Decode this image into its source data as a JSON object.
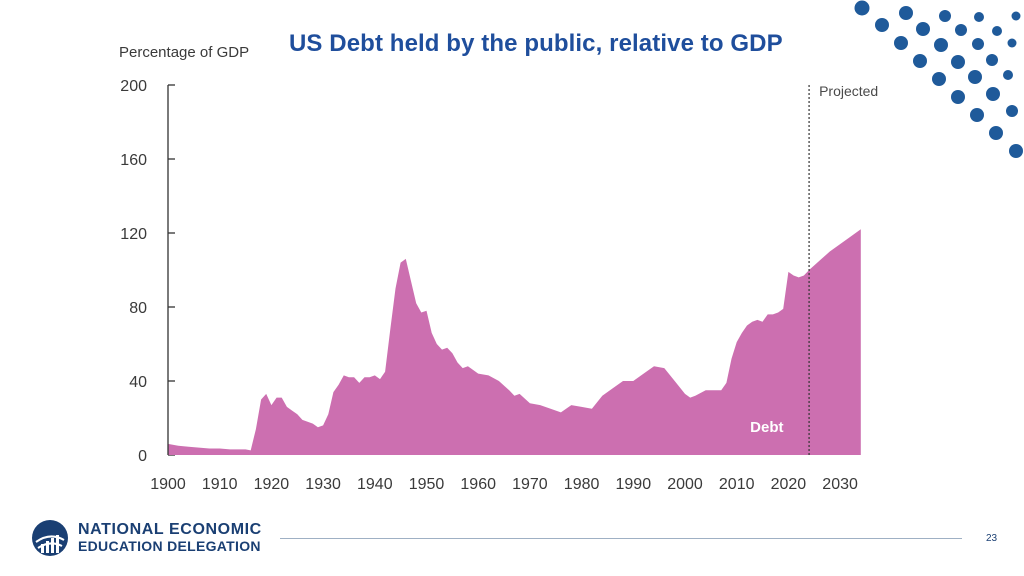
{
  "slide": {
    "title": "US Debt held by the public, relative to GDP",
    "page_number": "23",
    "logo": {
      "line1": "NATIONAL ECONOMIC",
      "line2": "EDUCATION DELEGATION"
    }
  },
  "colors": {
    "title": "#1f4e9c",
    "area_fill": "#cc6fb0",
    "dots": "#1f5a9a",
    "logo": "#1a3f73"
  },
  "chart_data": {
    "type": "area",
    "title": "US Debt held by the public, relative to GDP",
    "ylabel": "Percentage of GDP",
    "xlabel": "",
    "xlim": [
      1900,
      2034
    ],
    "ylim": [
      0,
      200
    ],
    "x_ticks": [
      1900,
      1910,
      1920,
      1930,
      1940,
      1950,
      1960,
      1970,
      1980,
      1990,
      2000,
      2010,
      2020,
      2030
    ],
    "y_ticks": [
      0,
      40,
      80,
      120,
      160,
      200
    ],
    "projection_start": 2024,
    "projection_label": "Projected",
    "annotations": [
      "Debt"
    ],
    "series": [
      {
        "name": "Debt",
        "x": [
          1900,
          1902,
          1904,
          1906,
          1908,
          1910,
          1912,
          1914,
          1915,
          1916,
          1917,
          1918,
          1919,
          1920,
          1921,
          1922,
          1923,
          1924,
          1925,
          1926,
          1927,
          1928,
          1929,
          1930,
          1931,
          1932,
          1933,
          1934,
          1935,
          1936,
          1937,
          1938,
          1939,
          1940,
          1941,
          1942,
          1943,
          1944,
          1945,
          1946,
          1947,
          1948,
          1949,
          1950,
          1951,
          1952,
          1953,
          1954,
          1955,
          1956,
          1957,
          1958,
          1959,
          1960,
          1962,
          1964,
          1966,
          1967,
          1968,
          1970,
          1972,
          1974,
          1976,
          1978,
          1980,
          1982,
          1984,
          1986,
          1988,
          1990,
          1992,
          1994,
          1996,
          1998,
          2000,
          2001,
          2002,
          2004,
          2006,
          2007,
          2008,
          2009,
          2010,
          2011,
          2012,
          2013,
          2014,
          2015,
          2016,
          2017,
          2018,
          2019,
          2020,
          2021,
          2022,
          2023,
          2024,
          2026,
          2028,
          2030,
          2032,
          2034
        ],
        "values": [
          6,
          5,
          4.5,
          4,
          3.5,
          3.5,
          3,
          3,
          3,
          2.5,
          14,
          30,
          33,
          27,
          31,
          31,
          26,
          24,
          22,
          19,
          18,
          17,
          15,
          16,
          22,
          34,
          38,
          43,
          42,
          42,
          39,
          42,
          42,
          43,
          41,
          45,
          68,
          90,
          104,
          106,
          94,
          82,
          77,
          78,
          66,
          60,
          57,
          58,
          55,
          50,
          47,
          48,
          46,
          44,
          43,
          40,
          35,
          32,
          33,
          28,
          27,
          25,
          23,
          27,
          26,
          25,
          32,
          36,
          40,
          40,
          44,
          48,
          47,
          40,
          33,
          31,
          32,
          35,
          35,
          35,
          39,
          52,
          61,
          66,
          70,
          72,
          73,
          72,
          76,
          76,
          77,
          79,
          99,
          97,
          96,
          97,
          100,
          105,
          110,
          114,
          118,
          122
        ]
      }
    ]
  }
}
